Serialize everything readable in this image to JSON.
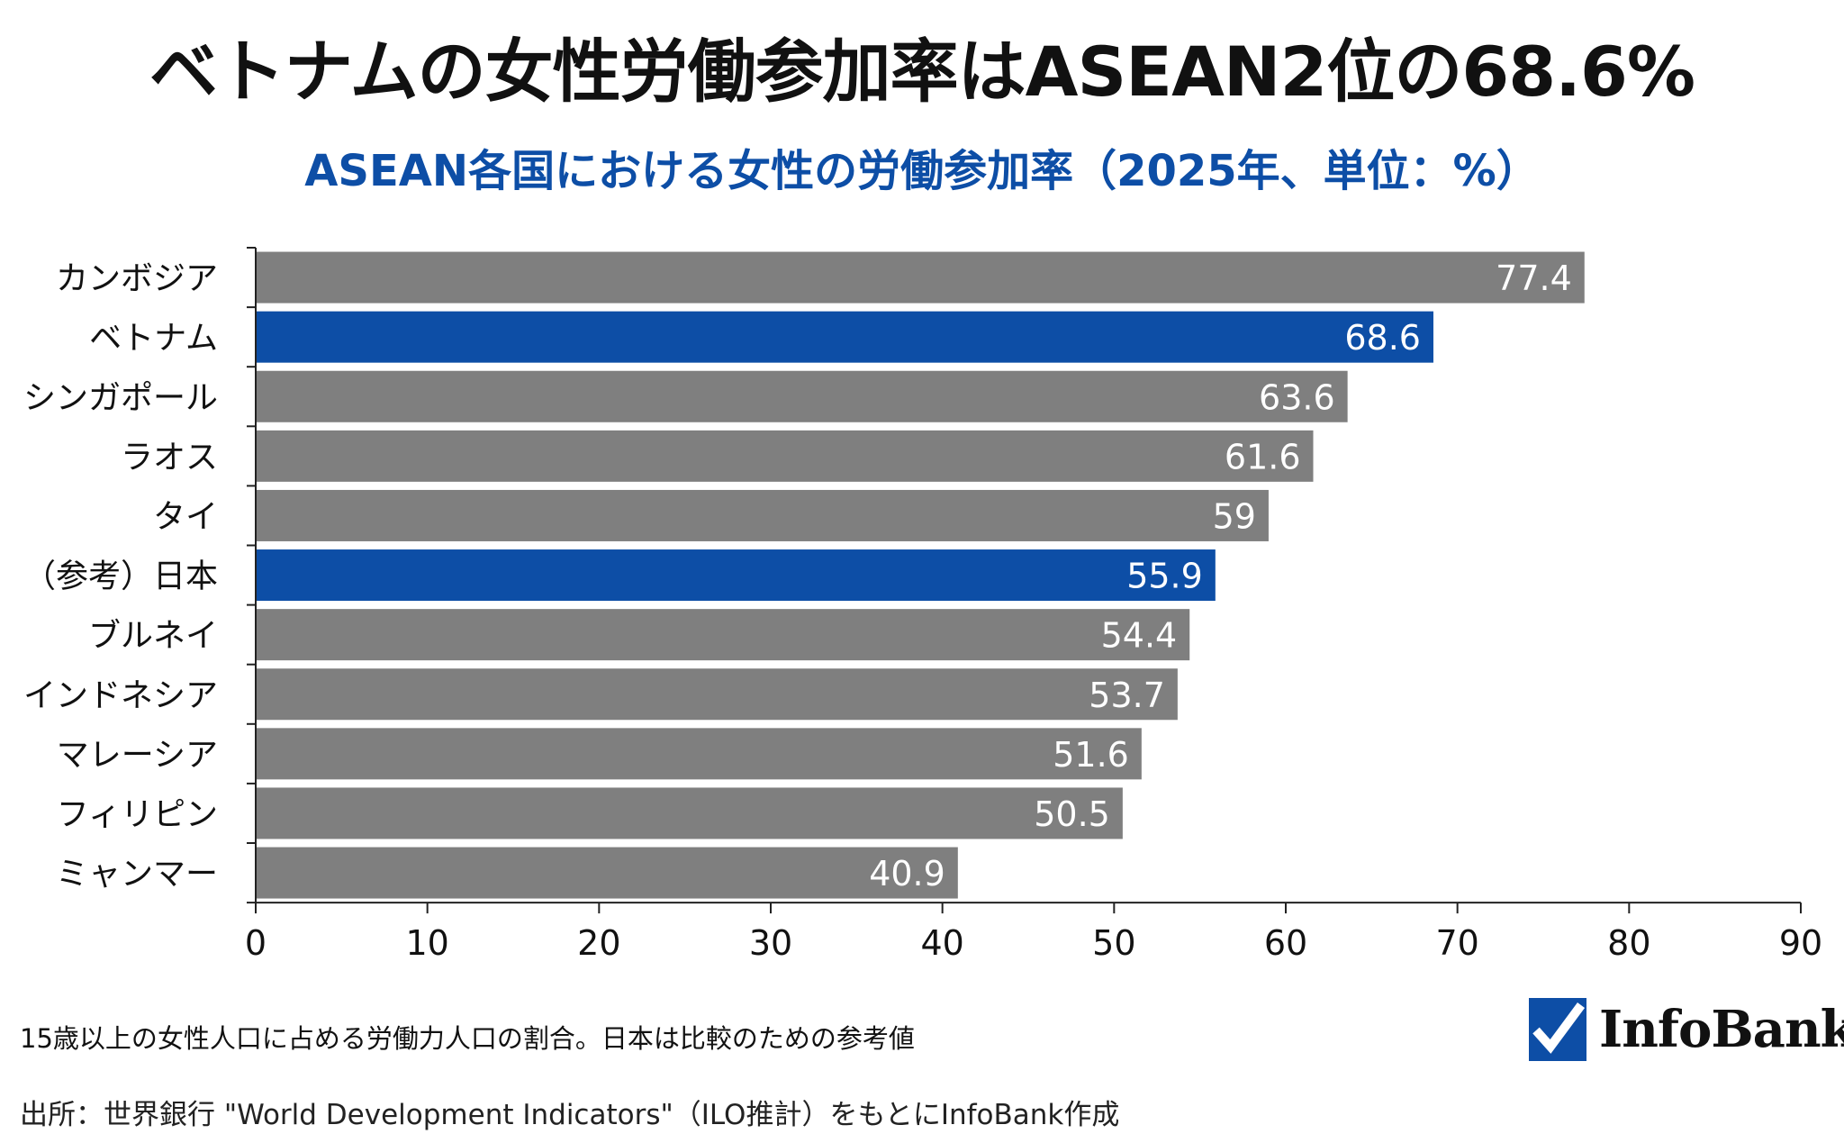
{
  "title": "ベトナムの女性労働参加率はASEAN2位の68.6%",
  "subtitle": "ASEAN各国における女性の労働参加率（2025年、単位：%）",
  "note": "15歳以上の女性人口に占める労働力人口の割合。日本は比較のための参考値",
  "source": "出所：世界銀行 \"World Development Indicators\"（ILO推計）をもとにInfoBank作成",
  "logo_text": "InfoBank",
  "colors": {
    "highlight": "#0d4ea6",
    "default": "#7f7f7f",
    "title": "#111111",
    "subtitle": "#0d4ea6"
  },
  "chart_data": {
    "type": "bar",
    "orientation": "horizontal",
    "categories": [
      "カンボジア",
      "ベトナム",
      "シンガポール",
      "ラオス",
      "タイ",
      "（参考）日本",
      "ブルネイ",
      "インドネシア",
      "マレーシア",
      "フィリピン",
      "ミャンマー"
    ],
    "values": [
      77.4,
      68.6,
      63.6,
      61.6,
      59,
      55.9,
      54.4,
      53.7,
      51.6,
      50.5,
      40.9
    ],
    "value_labels": [
      "77.4",
      "68.6",
      "63.6",
      "61.6",
      "59",
      "55.9",
      "54.4",
      "53.7",
      "51.6",
      "50.5",
      "40.9"
    ],
    "highlighted": [
      "ベトナム",
      "（参考）日本"
    ],
    "xlim": [
      0,
      90
    ],
    "xticks": [
      "0",
      "10",
      "20",
      "30",
      "40",
      "50",
      "60",
      "70",
      "80",
      "90"
    ],
    "grid": false,
    "legend": "none"
  }
}
